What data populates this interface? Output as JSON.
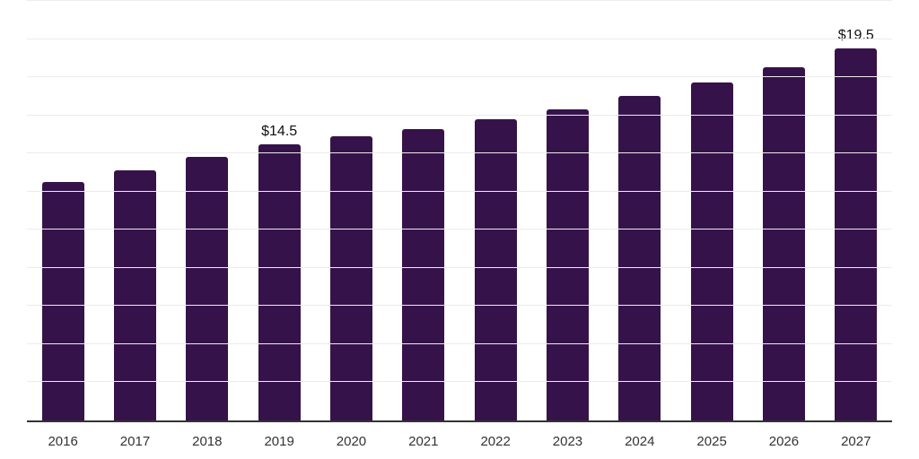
{
  "chart_data": {
    "type": "bar",
    "title": "",
    "xlabel": "",
    "ylabel": "",
    "categories": [
      "2016",
      "2017",
      "2018",
      "2019",
      "2020",
      "2021",
      "2022",
      "2023",
      "2024",
      "2025",
      "2026",
      "2027"
    ],
    "values": [
      12.5,
      13.1,
      13.8,
      14.5,
      14.9,
      15.3,
      15.8,
      16.3,
      17.0,
      17.7,
      18.5,
      19.5
    ],
    "bar_labels": [
      "",
      "",
      "",
      "$14.5",
      "",
      "",
      "",
      "",
      "",
      "",
      "",
      "$19.5"
    ],
    "ylim": [
      0,
      22
    ],
    "gridline_step": 2,
    "grid": true,
    "legend": false,
    "colors": {
      "bar": "#35134a",
      "gridline": "#ececec",
      "axis_line": "#333333",
      "tick_label": "#333333",
      "data_label": "#111111",
      "background": "#ffffff"
    }
  }
}
